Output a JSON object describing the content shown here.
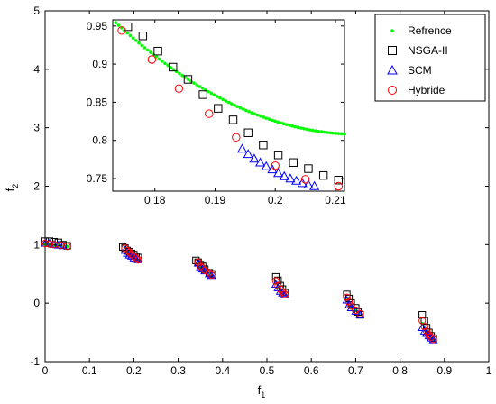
{
  "colors": {
    "reference": "#00ff00",
    "nsga": "#000000",
    "scm": "#0000ff",
    "hybride": "#ff0000",
    "axes": "#000000",
    "background": "#ffffff"
  },
  "chart_data": [
    {
      "id": "main",
      "type": "scatter",
      "title": "",
      "xlabel": "f",
      "xlabel_sub": "1",
      "ylabel": "f",
      "ylabel_sub": "2",
      "xlim": [
        0,
        1
      ],
      "ylim": [
        -1,
        5
      ],
      "xticks": [
        0,
        0.1,
        0.2,
        0.3,
        0.4,
        0.5,
        0.6,
        0.7,
        0.8,
        0.9,
        1
      ],
      "xtick_labels": [
        "0",
        "0.1",
        "0.2",
        "0.3",
        "0.4",
        "0.5",
        "0.6",
        "0.7",
        "0.8",
        "0.9",
        "1"
      ],
      "yticks": [
        -1,
        0,
        1,
        2,
        3,
        4,
        5
      ],
      "ytick_labels": [
        "-1",
        "0",
        "1",
        "2",
        "3",
        "4",
        "5"
      ],
      "grid": false,
      "legend": {
        "position": "top-right",
        "entries": [
          {
            "label": "Refrence",
            "marker": "dot",
            "color": "#00ff00"
          },
          {
            "label": "NSGA-II",
            "marker": "square",
            "color": "#000000"
          },
          {
            "label": "SCM",
            "marker": "triangle",
            "color": "#0000ff"
          },
          {
            "label": "Hybride",
            "marker": "circle",
            "color": "#ff0000"
          }
        ]
      },
      "series": [
        {
          "name": "Refrence",
          "marker": "dot",
          "color": "#00ff00",
          "points": [
            [
              0.0,
              1.0
            ],
            [
              0.01,
              1.0
            ],
            [
              0.02,
              0.99
            ],
            [
              0.03,
              0.99
            ],
            [
              0.04,
              0.98
            ],
            [
              0.05,
              0.97
            ],
            [
              0.18,
              0.95
            ],
            [
              0.185,
              0.88
            ],
            [
              0.19,
              0.84
            ],
            [
              0.195,
              0.8
            ],
            [
              0.2,
              0.77
            ],
            [
              0.205,
              0.75
            ],
            [
              0.21,
              0.74
            ],
            [
              0.345,
              0.7
            ],
            [
              0.35,
              0.62
            ],
            [
              0.355,
              0.58
            ],
            [
              0.36,
              0.55
            ],
            [
              0.37,
              0.5
            ],
            [
              0.375,
              0.47
            ],
            [
              0.52,
              0.35
            ],
            [
              0.525,
              0.28
            ],
            [
              0.53,
              0.22
            ],
            [
              0.535,
              0.18
            ],
            [
              0.54,
              0.15
            ],
            [
              0.68,
              0.05
            ],
            [
              0.685,
              -0.03
            ],
            [
              0.69,
              -0.08
            ],
            [
              0.7,
              -0.12
            ],
            [
              0.71,
              -0.18
            ],
            [
              0.85,
              -0.35
            ],
            [
              0.855,
              -0.42
            ],
            [
              0.86,
              -0.48
            ],
            [
              0.865,
              -0.53
            ],
            [
              0.87,
              -0.58
            ],
            [
              0.875,
              -0.62
            ]
          ]
        },
        {
          "name": "NSGA-II",
          "marker": "square",
          "color": "#000000",
          "points": [
            [
              0.0,
              1.06
            ],
            [
              0.01,
              1.06
            ],
            [
              0.02,
              1.05
            ],
            [
              0.03,
              1.04
            ],
            [
              0.04,
              1.0
            ],
            [
              0.05,
              0.98
            ],
            [
              0.175,
              0.96
            ],
            [
              0.18,
              0.94
            ],
            [
              0.185,
              0.9
            ],
            [
              0.19,
              0.88
            ],
            [
              0.195,
              0.85
            ],
            [
              0.2,
              0.83
            ],
            [
              0.205,
              0.8
            ],
            [
              0.21,
              0.78
            ],
            [
              0.34,
              0.73
            ],
            [
              0.345,
              0.7
            ],
            [
              0.35,
              0.66
            ],
            [
              0.355,
              0.63
            ],
            [
              0.36,
              0.58
            ],
            [
              0.37,
              0.52
            ],
            [
              0.375,
              0.5
            ],
            [
              0.52,
              0.45
            ],
            [
              0.525,
              0.39
            ],
            [
              0.53,
              0.3
            ],
            [
              0.535,
              0.24
            ],
            [
              0.54,
              0.18
            ],
            [
              0.68,
              0.15
            ],
            [
              0.685,
              0.08
            ],
            [
              0.69,
              0.0
            ],
            [
              0.7,
              -0.08
            ],
            [
              0.705,
              -0.15
            ],
            [
              0.71,
              -0.2
            ],
            [
              0.85,
              -0.2
            ],
            [
              0.855,
              -0.3
            ],
            [
              0.86,
              -0.42
            ],
            [
              0.865,
              -0.5
            ],
            [
              0.87,
              -0.56
            ],
            [
              0.875,
              -0.6
            ]
          ]
        },
        {
          "name": "SCM",
          "marker": "triangle",
          "color": "#0000ff",
          "points": [
            [
              0.0,
              1.02
            ],
            [
              0.01,
              1.02
            ],
            [
              0.02,
              1.0
            ],
            [
              0.03,
              0.99
            ],
            [
              0.04,
              0.98
            ],
            [
              0.18,
              0.9
            ],
            [
              0.185,
              0.85
            ],
            [
              0.19,
              0.82
            ],
            [
              0.195,
              0.8
            ],
            [
              0.2,
              0.77
            ],
            [
              0.205,
              0.75
            ],
            [
              0.21,
              0.74
            ],
            [
              0.345,
              0.68
            ],
            [
              0.35,
              0.62
            ],
            [
              0.355,
              0.58
            ],
            [
              0.36,
              0.55
            ],
            [
              0.37,
              0.5
            ],
            [
              0.375,
              0.47
            ],
            [
              0.52,
              0.32
            ],
            [
              0.525,
              0.26
            ],
            [
              0.53,
              0.2
            ],
            [
              0.535,
              0.17
            ],
            [
              0.54,
              0.14
            ],
            [
              0.68,
              0.05
            ],
            [
              0.685,
              -0.03
            ],
            [
              0.69,
              -0.08
            ],
            [
              0.7,
              -0.14
            ],
            [
              0.71,
              -0.2
            ],
            [
              0.85,
              -0.42
            ],
            [
              0.855,
              -0.48
            ],
            [
              0.86,
              -0.52
            ],
            [
              0.865,
              -0.56
            ],
            [
              0.87,
              -0.6
            ],
            [
              0.875,
              -0.63
            ]
          ]
        },
        {
          "name": "Hybride",
          "marker": "circle",
          "color": "#ff0000",
          "points": [
            [
              0.0,
              1.02
            ],
            [
              0.01,
              1.01
            ],
            [
              0.02,
              1.0
            ],
            [
              0.035,
              0.99
            ],
            [
              0.05,
              0.97
            ],
            [
              0.18,
              0.94
            ],
            [
              0.185,
              0.9
            ],
            [
              0.19,
              0.87
            ],
            [
              0.195,
              0.83
            ],
            [
              0.2,
              0.8
            ],
            [
              0.205,
              0.77
            ],
            [
              0.21,
              0.74
            ],
            [
              0.345,
              0.7
            ],
            [
              0.35,
              0.63
            ],
            [
              0.355,
              0.6
            ],
            [
              0.36,
              0.56
            ],
            [
              0.37,
              0.52
            ],
            [
              0.375,
              0.48
            ],
            [
              0.52,
              0.38
            ],
            [
              0.525,
              0.3
            ],
            [
              0.53,
              0.24
            ],
            [
              0.535,
              0.19
            ],
            [
              0.54,
              0.15
            ],
            [
              0.68,
              0.1
            ],
            [
              0.685,
              0.02
            ],
            [
              0.69,
              -0.05
            ],
            [
              0.7,
              -0.12
            ],
            [
              0.71,
              -0.18
            ],
            [
              0.85,
              -0.3
            ],
            [
              0.855,
              -0.4
            ],
            [
              0.86,
              -0.48
            ],
            [
              0.865,
              -0.54
            ],
            [
              0.87,
              -0.58
            ],
            [
              0.875,
              -0.62
            ]
          ]
        }
      ]
    },
    {
      "id": "inset",
      "type": "scatter",
      "title": "",
      "xlabel": "",
      "ylabel": "",
      "xlim": [
        0.173,
        0.2115
      ],
      "ylim": [
        0.7335,
        0.958
      ],
      "xticks": [
        0.18,
        0.19,
        0.2,
        0.21
      ],
      "xtick_labels": [
        "0.18",
        "0.19",
        "0.2",
        "0.21"
      ],
      "yticks": [
        0.75,
        0.8,
        0.85,
        0.9,
        0.95
      ],
      "ytick_labels": [
        "0.75",
        "0.8",
        "0.85",
        "0.9",
        "0.95"
      ],
      "grid": false,
      "series": [
        {
          "name": "Refrence",
          "marker": "dot",
          "color": "#00ff00",
          "curve": {
            "from": 0.1735,
            "to": 0.2115,
            "count": 80,
            "x0": 0.173,
            "y0": 0.958,
            "k": 7.35,
            "k2": 90
          }
        },
        {
          "name": "NSGA-II",
          "marker": "square",
          "color": "#000000",
          "points": [
            [
              0.1755,
              0.949
            ],
            [
              0.178,
              0.937
            ],
            [
              0.1805,
              0.917
            ],
            [
              0.183,
              0.896
            ],
            [
              0.1855,
              0.88
            ],
            [
              0.188,
              0.86
            ],
            [
              0.1905,
              0.842
            ],
            [
              0.193,
              0.827
            ],
            [
              0.1955,
              0.81
            ],
            [
              0.198,
              0.794
            ],
            [
              0.2005,
              0.781
            ],
            [
              0.203,
              0.771
            ],
            [
              0.2055,
              0.763
            ],
            [
              0.208,
              0.754
            ],
            [
              0.2105,
              0.748
            ]
          ]
        },
        {
          "name": "SCM",
          "marker": "triangle",
          "color": "#0000ff",
          "points": [
            [
              0.1945,
              0.789
            ],
            [
              0.1955,
              0.782
            ],
            [
              0.1965,
              0.776
            ],
            [
              0.1975,
              0.771
            ],
            [
              0.1985,
              0.766
            ],
            [
              0.1995,
              0.762
            ],
            [
              0.2005,
              0.757
            ],
            [
              0.2015,
              0.753
            ],
            [
              0.2025,
              0.75
            ],
            [
              0.2035,
              0.747
            ],
            [
              0.2045,
              0.744
            ],
            [
              0.2055,
              0.742
            ],
            [
              0.2065,
              0.74
            ]
          ]
        },
        {
          "name": "Hybride",
          "marker": "circle",
          "color": "#ff0000",
          "points": [
            [
              0.1745,
              0.944
            ],
            [
              0.1795,
              0.906
            ],
            [
              0.184,
              0.868
            ],
            [
              0.189,
              0.835
            ],
            [
              0.1935,
              0.804
            ],
            [
              0.2,
              0.767
            ],
            [
              0.205,
              0.749
            ],
            [
              0.2105,
              0.74
            ]
          ]
        }
      ]
    }
  ]
}
